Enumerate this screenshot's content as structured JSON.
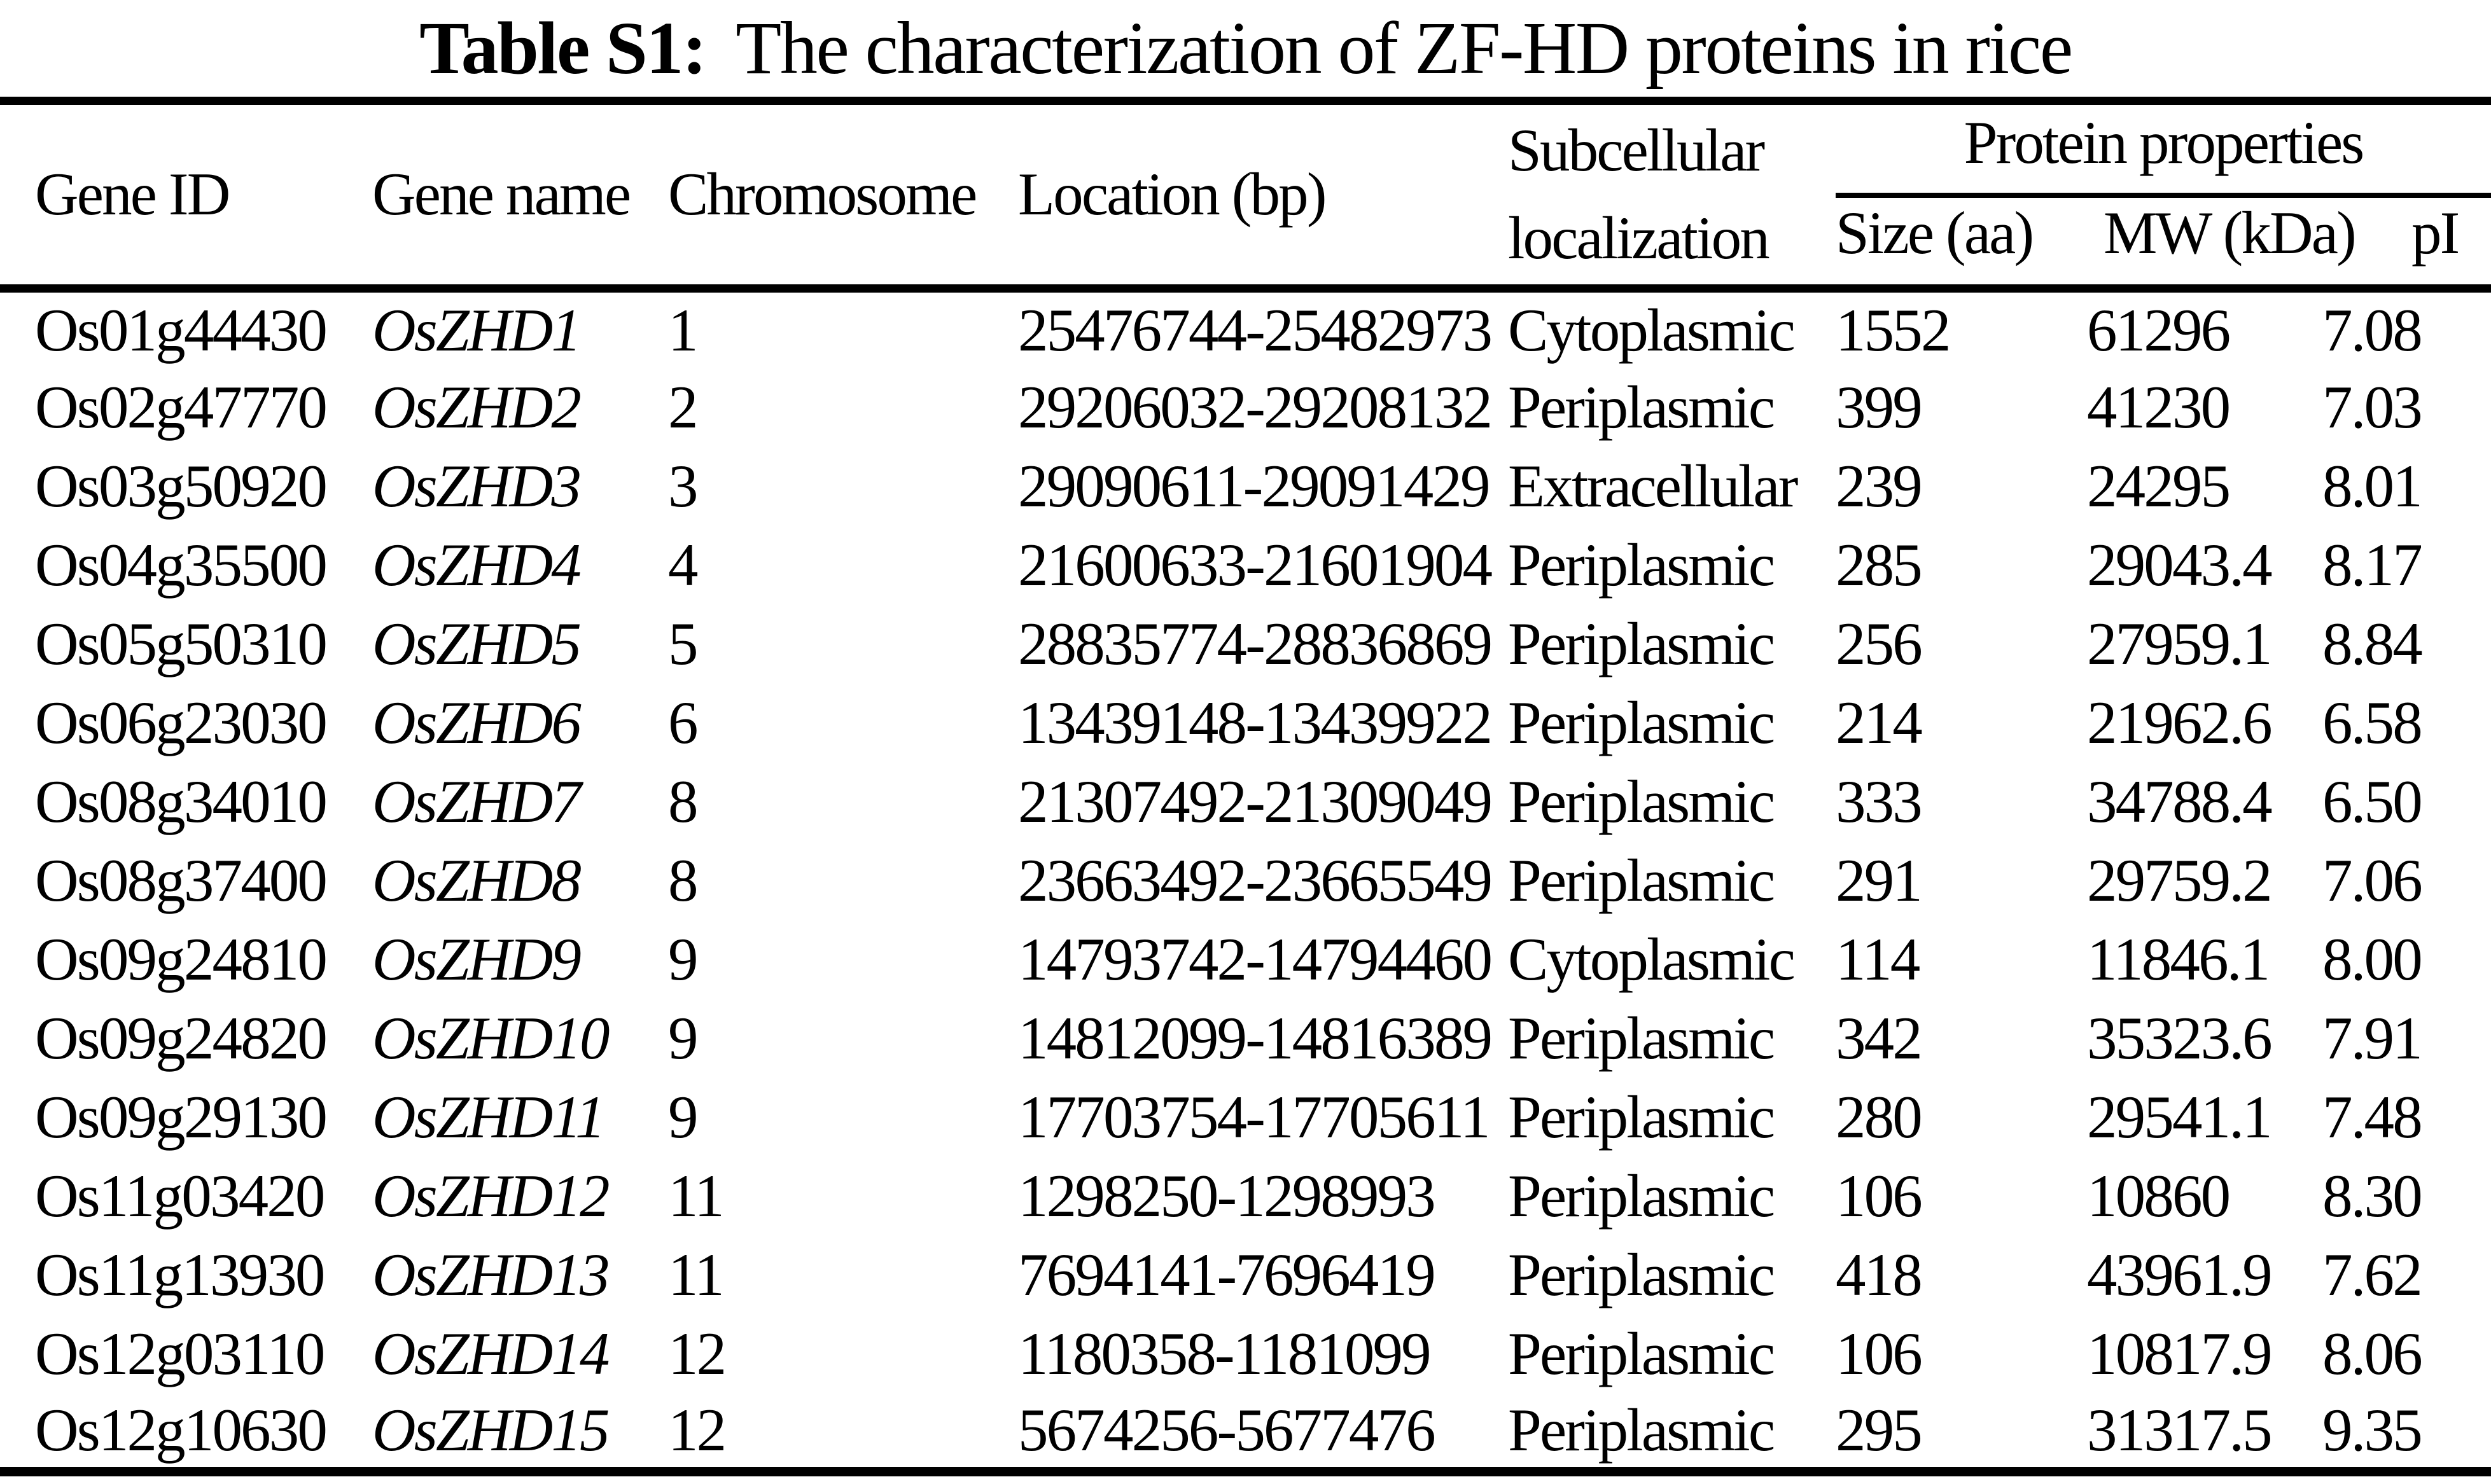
{
  "title": {
    "label": "Table S1:",
    "text": "The characterization of ZF-HD proteins in rice"
  },
  "table": {
    "columns": {
      "gene_id": "Gene ID",
      "gene_name": "Gene name",
      "chromosome": "Chromosome",
      "location": "Location (bp)",
      "subcellular": "Subcellular localization",
      "protein_properties": "Protein properties",
      "size": "Size (aa)",
      "mw": "MW (kDa)",
      "pi": "pI"
    },
    "rows": [
      {
        "gene_id": "Os01g44430",
        "gene_name": "OsZHD1",
        "chromosome": "1",
        "location": "25476744-25482973",
        "subcellular": "Cytoplasmic",
        "size": "1552",
        "mw": "61296",
        "pi": "7.08"
      },
      {
        "gene_id": "Os02g47770",
        "gene_name": "OsZHD2",
        "chromosome": "2",
        "location": "29206032-29208132",
        "subcellular": "Periplasmic",
        "size": "399",
        "mw": "41230",
        "pi": "7.03"
      },
      {
        "gene_id": "Os03g50920",
        "gene_name": "OsZHD3",
        "chromosome": "3",
        "location": "29090611-29091429",
        "subcellular": "Extracellular",
        "size": "239",
        "mw": "24295",
        "pi": "8.01"
      },
      {
        "gene_id": "Os04g35500",
        "gene_name": "OsZHD4",
        "chromosome": "4",
        "location": "21600633-21601904",
        "subcellular": "Periplasmic",
        "size": "285",
        "mw": "29043.4",
        "pi": "8.17"
      },
      {
        "gene_id": "Os05g50310",
        "gene_name": "OsZHD5",
        "chromosome": "5",
        "location": "28835774-28836869",
        "subcellular": "Periplasmic",
        "size": "256",
        "mw": "27959.1",
        "pi": "8.84"
      },
      {
        "gene_id": "Os06g23030",
        "gene_name": "OsZHD6",
        "chromosome": "6",
        "location": "13439148-13439922",
        "subcellular": "Periplasmic",
        "size": "214",
        "mw": "21962.6",
        "pi": "6.58"
      },
      {
        "gene_id": "Os08g34010",
        "gene_name": "OsZHD7",
        "chromosome": "8",
        "location": "21307492-21309049",
        "subcellular": "Periplasmic",
        "size": "333",
        "mw": "34788.4",
        "pi": "6.50"
      },
      {
        "gene_id": "Os08g37400",
        "gene_name": "OsZHD8",
        "chromosome": "8",
        "location": "23663492-23665549",
        "subcellular": "Periplasmic",
        "size": "291",
        "mw": "29759.2",
        "pi": "7.06"
      },
      {
        "gene_id": "Os09g24810",
        "gene_name": "OsZHD9",
        "chromosome": "9",
        "location": "14793742-14794460",
        "subcellular": "Cytoplasmic",
        "size": "114",
        "mw": "11846.1",
        "pi": "8.00"
      },
      {
        "gene_id": "Os09g24820",
        "gene_name": "OsZHD10",
        "chromosome": "9",
        "location": "14812099-14816389",
        "subcellular": "Periplasmic",
        "size": "342",
        "mw": "35323.6",
        "pi": "7.91"
      },
      {
        "gene_id": "Os09g29130",
        "gene_name": "OsZHD11",
        "chromosome": "9",
        "location": "17703754-17705611",
        "subcellular": "Periplasmic",
        "size": "280",
        "mw": "29541.1",
        "pi": "7.48"
      },
      {
        "gene_id": "Os11g03420",
        "gene_name": "OsZHD12",
        "chromosome": "11",
        "location": "1298250-1298993",
        "subcellular": "Periplasmic",
        "size": "106",
        "mw": "10860",
        "pi": "8.30"
      },
      {
        "gene_id": "Os11g13930",
        "gene_name": "OsZHD13",
        "chromosome": "11",
        "location": "7694141-7696419",
        "subcellular": "Periplasmic",
        "size": "418",
        "mw": "43961.9",
        "pi": "7.62"
      },
      {
        "gene_id": "Os12g03110",
        "gene_name": "OsZHD14",
        "chromosome": "12",
        "location": "1180358-1181099",
        "subcellular": "Periplasmic",
        "size": "106",
        "mw": "10817.9",
        "pi": "8.06"
      },
      {
        "gene_id": "Os12g10630",
        "gene_name": "OsZHD15",
        "chromosome": "12",
        "location": "5674256-5677476",
        "subcellular": "Periplasmic",
        "size": "295",
        "mw": "31317.5",
        "pi": "9.35"
      }
    ]
  }
}
